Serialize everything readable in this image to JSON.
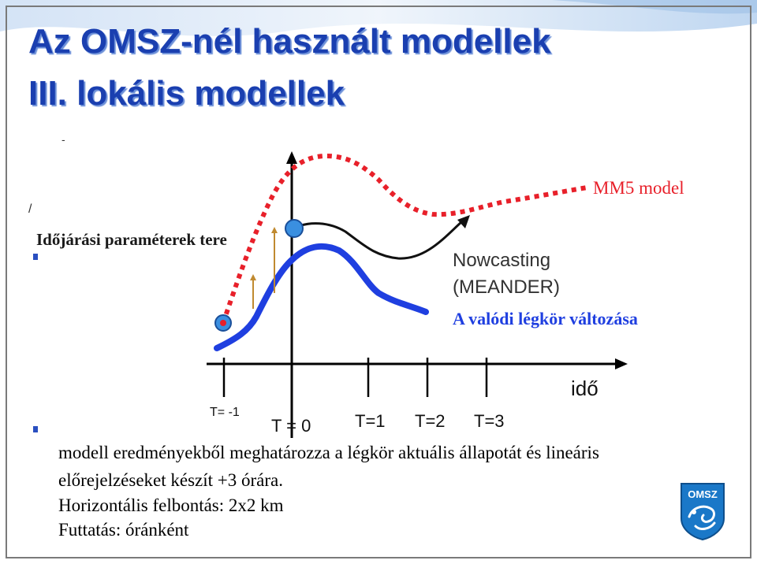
{
  "title": {
    "line1": "Az OMSZ-nél használt modellek",
    "line2": "III. lokális modellek"
  },
  "diagram": {
    "y_axis_label": "Időjárási paraméterek tere",
    "x_axis_label": "idő",
    "mm5_label": "MM5 model",
    "nowcasting_label_1": "Nowcasting",
    "nowcasting_label_2": "(MEANDER)",
    "real_label": "A valódi légkör változása",
    "ticks": [
      "T= -1",
      "T = 0",
      "T=1",
      "T=2",
      "T=3"
    ],
    "colors": {
      "mm5": "#e8202a",
      "real": "#1f3fe0",
      "nowcast": "#111111",
      "axis": "#000000",
      "marker": "#3a8fe0",
      "adjust_arrow": "#c08a30"
    }
  },
  "body": {
    "line1": "modell eredményekből meghatározza a légkör aktuális állapotát és lineáris",
    "line2": "előrejelzéseket készít +3 órára.",
    "line3": "Horizontális felbontás: 2x2 km",
    "line4": "Futtatás: óránként"
  },
  "logo": {
    "text": "OMSZ",
    "color": "#1a78c8"
  }
}
